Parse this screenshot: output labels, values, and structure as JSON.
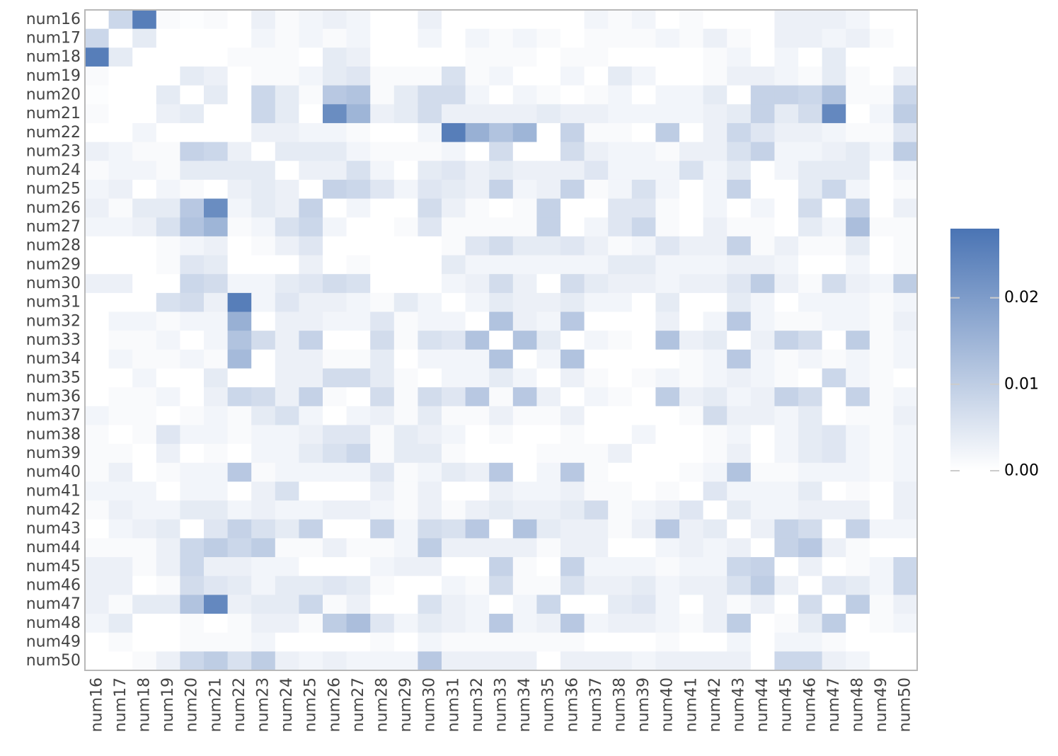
{
  "chart_data": {
    "type": "heatmap",
    "title": "",
    "xlabel": "",
    "ylabel": "",
    "labels": [
      "num16",
      "num17",
      "num18",
      "num19",
      "num20",
      "num21",
      "num22",
      "num23",
      "num24",
      "num25",
      "num26",
      "num27",
      "num28",
      "num29",
      "num30",
      "num31",
      "num32",
      "num33",
      "num34",
      "num35",
      "num36",
      "num37",
      "num38",
      "num39",
      "num40",
      "num41",
      "num42",
      "num43",
      "num44",
      "num45",
      "num46",
      "num47",
      "num48",
      "num49",
      "num50"
    ],
    "colorbar": {
      "range": [
        0,
        0.028
      ],
      "ticks": [
        0,
        0.01,
        0.02
      ],
      "tick_labels": [
        "0.00",
        "0.01",
        "0.02"
      ],
      "color_low": "#ffffff",
      "color_high": "#4a74b4"
    },
    "values": [
      [
        0,
        0.008,
        0.026,
        0.001,
        0.0005,
        0.001,
        0,
        0.003,
        0.001,
        0.002,
        0.003,
        0.002,
        0,
        0,
        0.003,
        0,
        0,
        0,
        0,
        0,
        0,
        0.002,
        0.001,
        0.002,
        0,
        0.001,
        0,
        0,
        0,
        0.003,
        0.003,
        0.003,
        0.002,
        0,
        0
      ],
      [
        0.008,
        0,
        0.004,
        0,
        0,
        0,
        0,
        0.002,
        0.001,
        0.002,
        0.001,
        0.002,
        0,
        0,
        0.002,
        0,
        0.002,
        0.001,
        0.002,
        0.001,
        0,
        0.001,
        0.001,
        0.001,
        0.002,
        0.001,
        0.003,
        0.001,
        0,
        0.003,
        0.003,
        0.002,
        0.003,
        0.001,
        0
      ],
      [
        0.026,
        0.004,
        0,
        0,
        0,
        0,
        0.001,
        0.001,
        0.001,
        0,
        0.004,
        0.003,
        0,
        0,
        0,
        0,
        0.001,
        0.001,
        0.001,
        0,
        0.001,
        0.001,
        0,
        0,
        0,
        0,
        0.001,
        0.002,
        0,
        0.002,
        0,
        0.004,
        0,
        0,
        0
      ],
      [
        0.001,
        0,
        0,
        0,
        0.004,
        0.003,
        0,
        0.001,
        0.001,
        0.002,
        0.004,
        0.005,
        0.001,
        0.001,
        0.001,
        0.006,
        0.001,
        0.002,
        0,
        0,
        0.002,
        0,
        0.004,
        0.002,
        0,
        0,
        0.001,
        0.003,
        0.003,
        0.002,
        0.001,
        0.004,
        0.001,
        0,
        0.003
      ],
      [
        0.0005,
        0,
        0,
        0.004,
        0,
        0.004,
        0,
        0.008,
        0.004,
        0.001,
        0.011,
        0.012,
        0.001,
        0.004,
        0.007,
        0.007,
        0.002,
        0,
        0.002,
        0.001,
        0,
        0.001,
        0.002,
        0,
        0.002,
        0.002,
        0.004,
        0,
        0.009,
        0.009,
        0.008,
        0.012,
        0.001,
        0.001,
        0.008
      ],
      [
        0.001,
        0,
        0,
        0.003,
        0.004,
        0,
        0,
        0.008,
        0.004,
        0,
        0.023,
        0.015,
        0.003,
        0.004,
        0.007,
        0.003,
        0.003,
        0.003,
        0.003,
        0.004,
        0.003,
        0.003,
        0.002,
        0.002,
        0.002,
        0.002,
        0.003,
        0.004,
        0.009,
        0.004,
        0.007,
        0.024,
        0,
        0.002,
        0.01
      ],
      [
        0,
        0,
        0.002,
        0,
        0,
        0,
        0,
        0.003,
        0.003,
        0.002,
        0.002,
        0.001,
        0,
        0,
        0.002,
        0.026,
        0.016,
        0.012,
        0.015,
        0,
        0.009,
        0.001,
        0.001,
        0,
        0.01,
        0,
        0.003,
        0.008,
        0.005,
        0.003,
        0.003,
        0.002,
        0.001,
        0.001,
        0.005
      ],
      [
        0.003,
        0.002,
        0.001,
        0.001,
        0.009,
        0.008,
        0.003,
        0,
        0.004,
        0.004,
        0.004,
        0.002,
        0.001,
        0.001,
        0.001,
        0.002,
        0,
        0.007,
        0,
        0,
        0.007,
        0.003,
        0.002,
        0.002,
        0.001,
        0.003,
        0.003,
        0.006,
        0.009,
        0.002,
        0.002,
        0.003,
        0.004,
        0.002,
        0.01
      ],
      [
        0.001,
        0.002,
        0.002,
        0.001,
        0.004,
        0.004,
        0.004,
        0.004,
        0,
        0.003,
        0.003,
        0.006,
        0.002,
        0,
        0.004,
        0.005,
        0.003,
        0.004,
        0.003,
        0.003,
        0.003,
        0.005,
        0.002,
        0.002,
        0.002,
        0.006,
        0.002,
        0.004,
        0,
        0.002,
        0.004,
        0.004,
        0.004,
        0,
        0.002
      ],
      [
        0.002,
        0.003,
        0,
        0.002,
        0.001,
        0,
        0.003,
        0.004,
        0.003,
        0,
        0.009,
        0.008,
        0.005,
        0.002,
        0.005,
        0.004,
        0.003,
        0.009,
        0.002,
        0.003,
        0.009,
        0.001,
        0.002,
        0.006,
        0.002,
        0,
        0.002,
        0.009,
        0,
        0,
        0.004,
        0.008,
        0.002,
        0,
        0.001
      ],
      [
        0.003,
        0.001,
        0.004,
        0.004,
        0.011,
        0.023,
        0.002,
        0.004,
        0.003,
        0.009,
        0,
        0.002,
        0,
        0,
        0.007,
        0.003,
        0.001,
        0,
        0.001,
        0.009,
        0,
        0,
        0.005,
        0.005,
        0.001,
        0,
        0.002,
        0,
        0.002,
        0,
        0.007,
        0,
        0.009,
        0,
        0.003
      ],
      [
        0.002,
        0.002,
        0.003,
        0.006,
        0.012,
        0.015,
        0.001,
        0.002,
        0.006,
        0.008,
        0.002,
        0,
        0,
        0.001,
        0.005,
        0.001,
        0.001,
        0.001,
        0.001,
        0.009,
        0,
        0.002,
        0.005,
        0.008,
        0.001,
        0,
        0.003,
        0.001,
        0.001,
        0,
        0.004,
        0.002,
        0.013,
        0.001,
        0.001
      ],
      [
        0,
        0,
        0,
        0.001,
        0.002,
        0.003,
        0,
        0.001,
        0.003,
        0.005,
        0,
        0,
        0,
        0,
        0,
        0.001,
        0.005,
        0.007,
        0.004,
        0.004,
        0.005,
        0.003,
        0.001,
        0.002,
        0.005,
        0.003,
        0.003,
        0.009,
        0.001,
        0.003,
        0.001,
        0.001,
        0.004,
        0,
        0.001
      ],
      [
        0,
        0,
        0,
        0.001,
        0.005,
        0.004,
        0,
        0,
        0,
        0.003,
        0,
        0.001,
        0,
        0,
        0,
        0.004,
        0.002,
        0.002,
        0.002,
        0.002,
        0.002,
        0.002,
        0.004,
        0.004,
        0.002,
        0.002,
        0.002,
        0.003,
        0.003,
        0.002,
        0,
        0,
        0.002,
        0,
        0.001
      ],
      [
        0.003,
        0.003,
        0,
        0,
        0.008,
        0.007,
        0.002,
        0.002,
        0.004,
        0.005,
        0.007,
        0.006,
        0,
        0,
        0,
        0.002,
        0.003,
        0.007,
        0.003,
        0,
        0.007,
        0.004,
        0.003,
        0.003,
        0.002,
        0.003,
        0.003,
        0.005,
        0.01,
        0.003,
        0.001,
        0.007,
        0.003,
        0.002,
        0.01
      ],
      [
        0,
        0,
        0,
        0.006,
        0.007,
        0.003,
        0.026,
        0.002,
        0.005,
        0.003,
        0.003,
        0.002,
        0.001,
        0.004,
        0.002,
        0,
        0.002,
        0.004,
        0.003,
        0.003,
        0.004,
        0.002,
        0.002,
        0,
        0.004,
        0,
        0,
        0.004,
        0.002,
        0,
        0.002,
        0.002,
        0.002,
        0.001,
        0.002
      ],
      [
        0,
        0.002,
        0.002,
        0.001,
        0.002,
        0.002,
        0.016,
        0,
        0.003,
        0.003,
        0.002,
        0.002,
        0.005,
        0.001,
        0.002,
        0.002,
        0,
        0.012,
        0.003,
        0.002,
        0.011,
        0,
        0,
        0,
        0.003,
        0,
        0.002,
        0.011,
        0.002,
        0.001,
        0.001,
        0.002,
        0.002,
        0.001,
        0.003
      ],
      [
        0,
        0.001,
        0.001,
        0.002,
        0,
        0.002,
        0.012,
        0.007,
        0.003,
        0.009,
        0,
        0,
        0.007,
        0.001,
        0.006,
        0.005,
        0.012,
        0,
        0.012,
        0.004,
        0,
        0.002,
        0.001,
        0,
        0.012,
        0.003,
        0.004,
        0,
        0.003,
        0.009,
        0.007,
        0,
        0.01,
        0.001,
        0.002
      ],
      [
        0,
        0.002,
        0.001,
        0.001,
        0.002,
        0.001,
        0.014,
        0,
        0.003,
        0.003,
        0.001,
        0.001,
        0.004,
        0,
        0.002,
        0.002,
        0.002,
        0.012,
        0,
        0.002,
        0.012,
        0,
        0,
        0,
        0,
        0.001,
        0.002,
        0.011,
        0.002,
        0.001,
        0.002,
        0.001,
        0.002,
        0.001,
        0.002
      ],
      [
        0,
        0,
        0.002,
        0,
        0,
        0.004,
        0,
        0,
        0.003,
        0.003,
        0.007,
        0.007,
        0.004,
        0.001,
        0,
        0.002,
        0.002,
        0.004,
        0.002,
        0,
        0.003,
        0.001,
        0,
        0.001,
        0.002,
        0.001,
        0.002,
        0.003,
        0.002,
        0.001,
        0,
        0.008,
        0.002,
        0.001,
        0
      ],
      [
        0,
        0.001,
        0.001,
        0.002,
        0,
        0.003,
        0.008,
        0.007,
        0.003,
        0.009,
        0.001,
        0,
        0.007,
        0.001,
        0.007,
        0.005,
        0.011,
        0.001,
        0.011,
        0.003,
        0,
        0.002,
        0.001,
        0,
        0.01,
        0.003,
        0.004,
        0.002,
        0.003,
        0.009,
        0.007,
        0,
        0.009,
        0.001,
        0.002
      ],
      [
        0.002,
        0.001,
        0.001,
        0,
        0.001,
        0.002,
        0.001,
        0.004,
        0.006,
        0.002,
        0,
        0.002,
        0.003,
        0.001,
        0.004,
        0.001,
        0.001,
        0.003,
        0.001,
        0.001,
        0.003,
        0,
        0,
        0,
        0,
        0.001,
        0.007,
        0.003,
        0.003,
        0.002,
        0.004,
        0,
        0.001,
        0.001,
        0.003
      ],
      [
        0.001,
        0,
        0.001,
        0.005,
        0.002,
        0.002,
        0.001,
        0.002,
        0.002,
        0.003,
        0.005,
        0.005,
        0.001,
        0.004,
        0.003,
        0.002,
        0,
        0.001,
        0,
        0,
        0.001,
        0,
        0,
        0.002,
        0,
        0,
        0.001,
        0.002,
        0,
        0.002,
        0.004,
        0.005,
        0.002,
        0.001,
        0.002
      ],
      [
        0.001,
        0.001,
        0,
        0.003,
        0,
        0.001,
        0,
        0.002,
        0.002,
        0.004,
        0.006,
        0.008,
        0.001,
        0.004,
        0.004,
        0.001,
        0,
        0,
        0,
        0.001,
        0.001,
        0.001,
        0.003,
        0,
        0,
        0,
        0.001,
        0.003,
        0,
        0.002,
        0.004,
        0.005,
        0.002,
        0.001,
        0.002
      ],
      [
        0.001,
        0.003,
        0,
        0.001,
        0.002,
        0.002,
        0.011,
        0.001,
        0.002,
        0.002,
        0.002,
        0.002,
        0.005,
        0.001,
        0.002,
        0.004,
        0.003,
        0.011,
        0,
        0.002,
        0.011,
        0.001,
        0,
        0,
        0,
        0.001,
        0.002,
        0.012,
        0.001,
        0.001,
        0.002,
        0.002,
        0.002,
        0.001,
        0.002
      ],
      [
        0.002,
        0.002,
        0.002,
        0,
        0.002,
        0.002,
        0,
        0.003,
        0.006,
        0,
        0,
        0,
        0.003,
        0.001,
        0.003,
        0,
        0,
        0.003,
        0.002,
        0.002,
        0.003,
        0.001,
        0.001,
        0,
        0.001,
        0,
        0.005,
        0.002,
        0.002,
        0.002,
        0.004,
        0,
        0.001,
        0,
        0.003
      ],
      [
        0.001,
        0.003,
        0.002,
        0.002,
        0.004,
        0.004,
        0.002,
        0.003,
        0.002,
        0.002,
        0.003,
        0.003,
        0.002,
        0.001,
        0.003,
        0.001,
        0.003,
        0.004,
        0.003,
        0.003,
        0.004,
        0.007,
        0.001,
        0.002,
        0.003,
        0.005,
        0,
        0.004,
        0.002,
        0.002,
        0.003,
        0.003,
        0.003,
        0,
        0.003
      ],
      [
        0,
        0.002,
        0.003,
        0.004,
        0,
        0.005,
        0.009,
        0.006,
        0.004,
        0.009,
        0,
        0,
        0.009,
        0.002,
        0.007,
        0.006,
        0.011,
        0,
        0.012,
        0.004,
        0.003,
        0.003,
        0.001,
        0.003,
        0.011,
        0.003,
        0.004,
        0,
        0.003,
        0.009,
        0.007,
        0,
        0.009,
        0.002,
        0.002
      ],
      [
        0.001,
        0.001,
        0.001,
        0.003,
        0.008,
        0.01,
        0.008,
        0.01,
        0.001,
        0.001,
        0.003,
        0.001,
        0.001,
        0.002,
        0.01,
        0.003,
        0.003,
        0.003,
        0.003,
        0.001,
        0.003,
        0.003,
        0,
        0,
        0.002,
        0.003,
        0.002,
        0.003,
        0,
        0.009,
        0.011,
        0.003,
        0.001,
        0,
        0
      ],
      [
        0.003,
        0.003,
        0.001,
        0.003,
        0.008,
        0.003,
        0.003,
        0.002,
        0.002,
        0,
        0,
        0,
        0.002,
        0.003,
        0.003,
        0,
        0,
        0.009,
        0.001,
        0,
        0.009,
        0.002,
        0.002,
        0.002,
        0.001,
        0.002,
        0.002,
        0.008,
        0.009,
        0,
        0.003,
        0,
        0.001,
        0.002,
        0.008
      ],
      [
        0.003,
        0.003,
        0,
        0.001,
        0.007,
        0.005,
        0.004,
        0.002,
        0.004,
        0.004,
        0.005,
        0.004,
        0.001,
        0,
        0,
        0.002,
        0.001,
        0.007,
        0.001,
        0.001,
        0.006,
        0.003,
        0.003,
        0.004,
        0.002,
        0.003,
        0.003,
        0.006,
        0.01,
        0.003,
        0,
        0.005,
        0.004,
        0.002,
        0.008
      ],
      [
        0.003,
        0.001,
        0.004,
        0.004,
        0.012,
        0.024,
        0.003,
        0.004,
        0.004,
        0.008,
        0.001,
        0.003,
        0,
        0,
        0.006,
        0.003,
        0.002,
        0,
        0.002,
        0.008,
        0,
        0,
        0.004,
        0.005,
        0.002,
        0,
        0.003,
        0.001,
        0.003,
        0,
        0.007,
        0,
        0.01,
        0.001,
        0.003
      ],
      [
        0.002,
        0.004,
        0,
        0,
        0.001,
        0,
        0.001,
        0.003,
        0.003,
        0.001,
        0.01,
        0.013,
        0.005,
        0.002,
        0.004,
        0.003,
        0.002,
        0.011,
        0.002,
        0.003,
        0.011,
        0.002,
        0.003,
        0.003,
        0.002,
        0.001,
        0.003,
        0.01,
        0,
        0.001,
        0.004,
        0.01,
        0,
        0.001,
        0.002
      ],
      [
        0,
        0.001,
        0,
        0,
        0.001,
        0.001,
        0.001,
        0.002,
        0,
        0,
        0,
        0,
        0.001,
        0,
        0.002,
        0.001,
        0.001,
        0.001,
        0.001,
        0.001,
        0.001,
        0,
        0,
        0,
        0.001,
        0,
        0,
        0.002,
        0,
        0.002,
        0.002,
        0.001,
        0,
        0,
        0
      ],
      [
        0,
        0,
        0.001,
        0.003,
        0.008,
        0.01,
        0.006,
        0.01,
        0.003,
        0.002,
        0.003,
        0.002,
        0.002,
        0.002,
        0.011,
        0.003,
        0.003,
        0.003,
        0.003,
        0,
        0.003,
        0.003,
        0.003,
        0.002,
        0.003,
        0.003,
        0.003,
        0.003,
        0,
        0.008,
        0.008,
        0.003,
        0.002,
        0,
        0
      ]
    ]
  }
}
